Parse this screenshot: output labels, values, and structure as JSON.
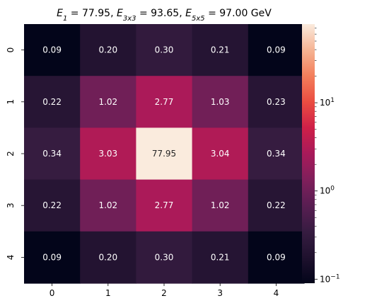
{
  "chart_data": {
    "type": "heatmap",
    "title": "E_1 = 77.95, E_3x3 = 93.65, E_5x5 = 97.00 GeV",
    "title_parts": [
      {
        "base": "E",
        "sub": "1",
        "value": "77.95",
        "sep": ", "
      },
      {
        "base": "E",
        "sub": "3x3",
        "value": "93.65",
        "sep": ", "
      },
      {
        "base": "E",
        "sub": "5x5",
        "value": "97.00",
        "sep": ""
      }
    ],
    "title_unit": "GeV",
    "x_labels": [
      "0",
      "1",
      "2",
      "3",
      "4"
    ],
    "y_labels": [
      "0",
      "1",
      "2",
      "3",
      "4"
    ],
    "values": [
      [
        0.09,
        0.2,
        0.3,
        0.21,
        0.09
      ],
      [
        0.22,
        1.02,
        2.77,
        1.03,
        0.23
      ],
      [
        0.34,
        3.03,
        77.95,
        3.04,
        0.34
      ],
      [
        0.22,
        1.02,
        2.77,
        1.02,
        0.22
      ],
      [
        0.09,
        0.2,
        0.3,
        0.21,
        0.09
      ]
    ],
    "value_format": "fixed-2",
    "colorbar": {
      "scale": "log",
      "range": [
        0.09,
        77.95
      ],
      "ticks": [
        {
          "value": 0.1,
          "base": "10",
          "exp": "−1"
        },
        {
          "value": 1,
          "base": "10",
          "exp": "0"
        },
        {
          "value": 10,
          "base": "10",
          "exp": "1"
        }
      ]
    },
    "colormap": "rocket",
    "grid": false,
    "legend": "colorbar-right"
  }
}
